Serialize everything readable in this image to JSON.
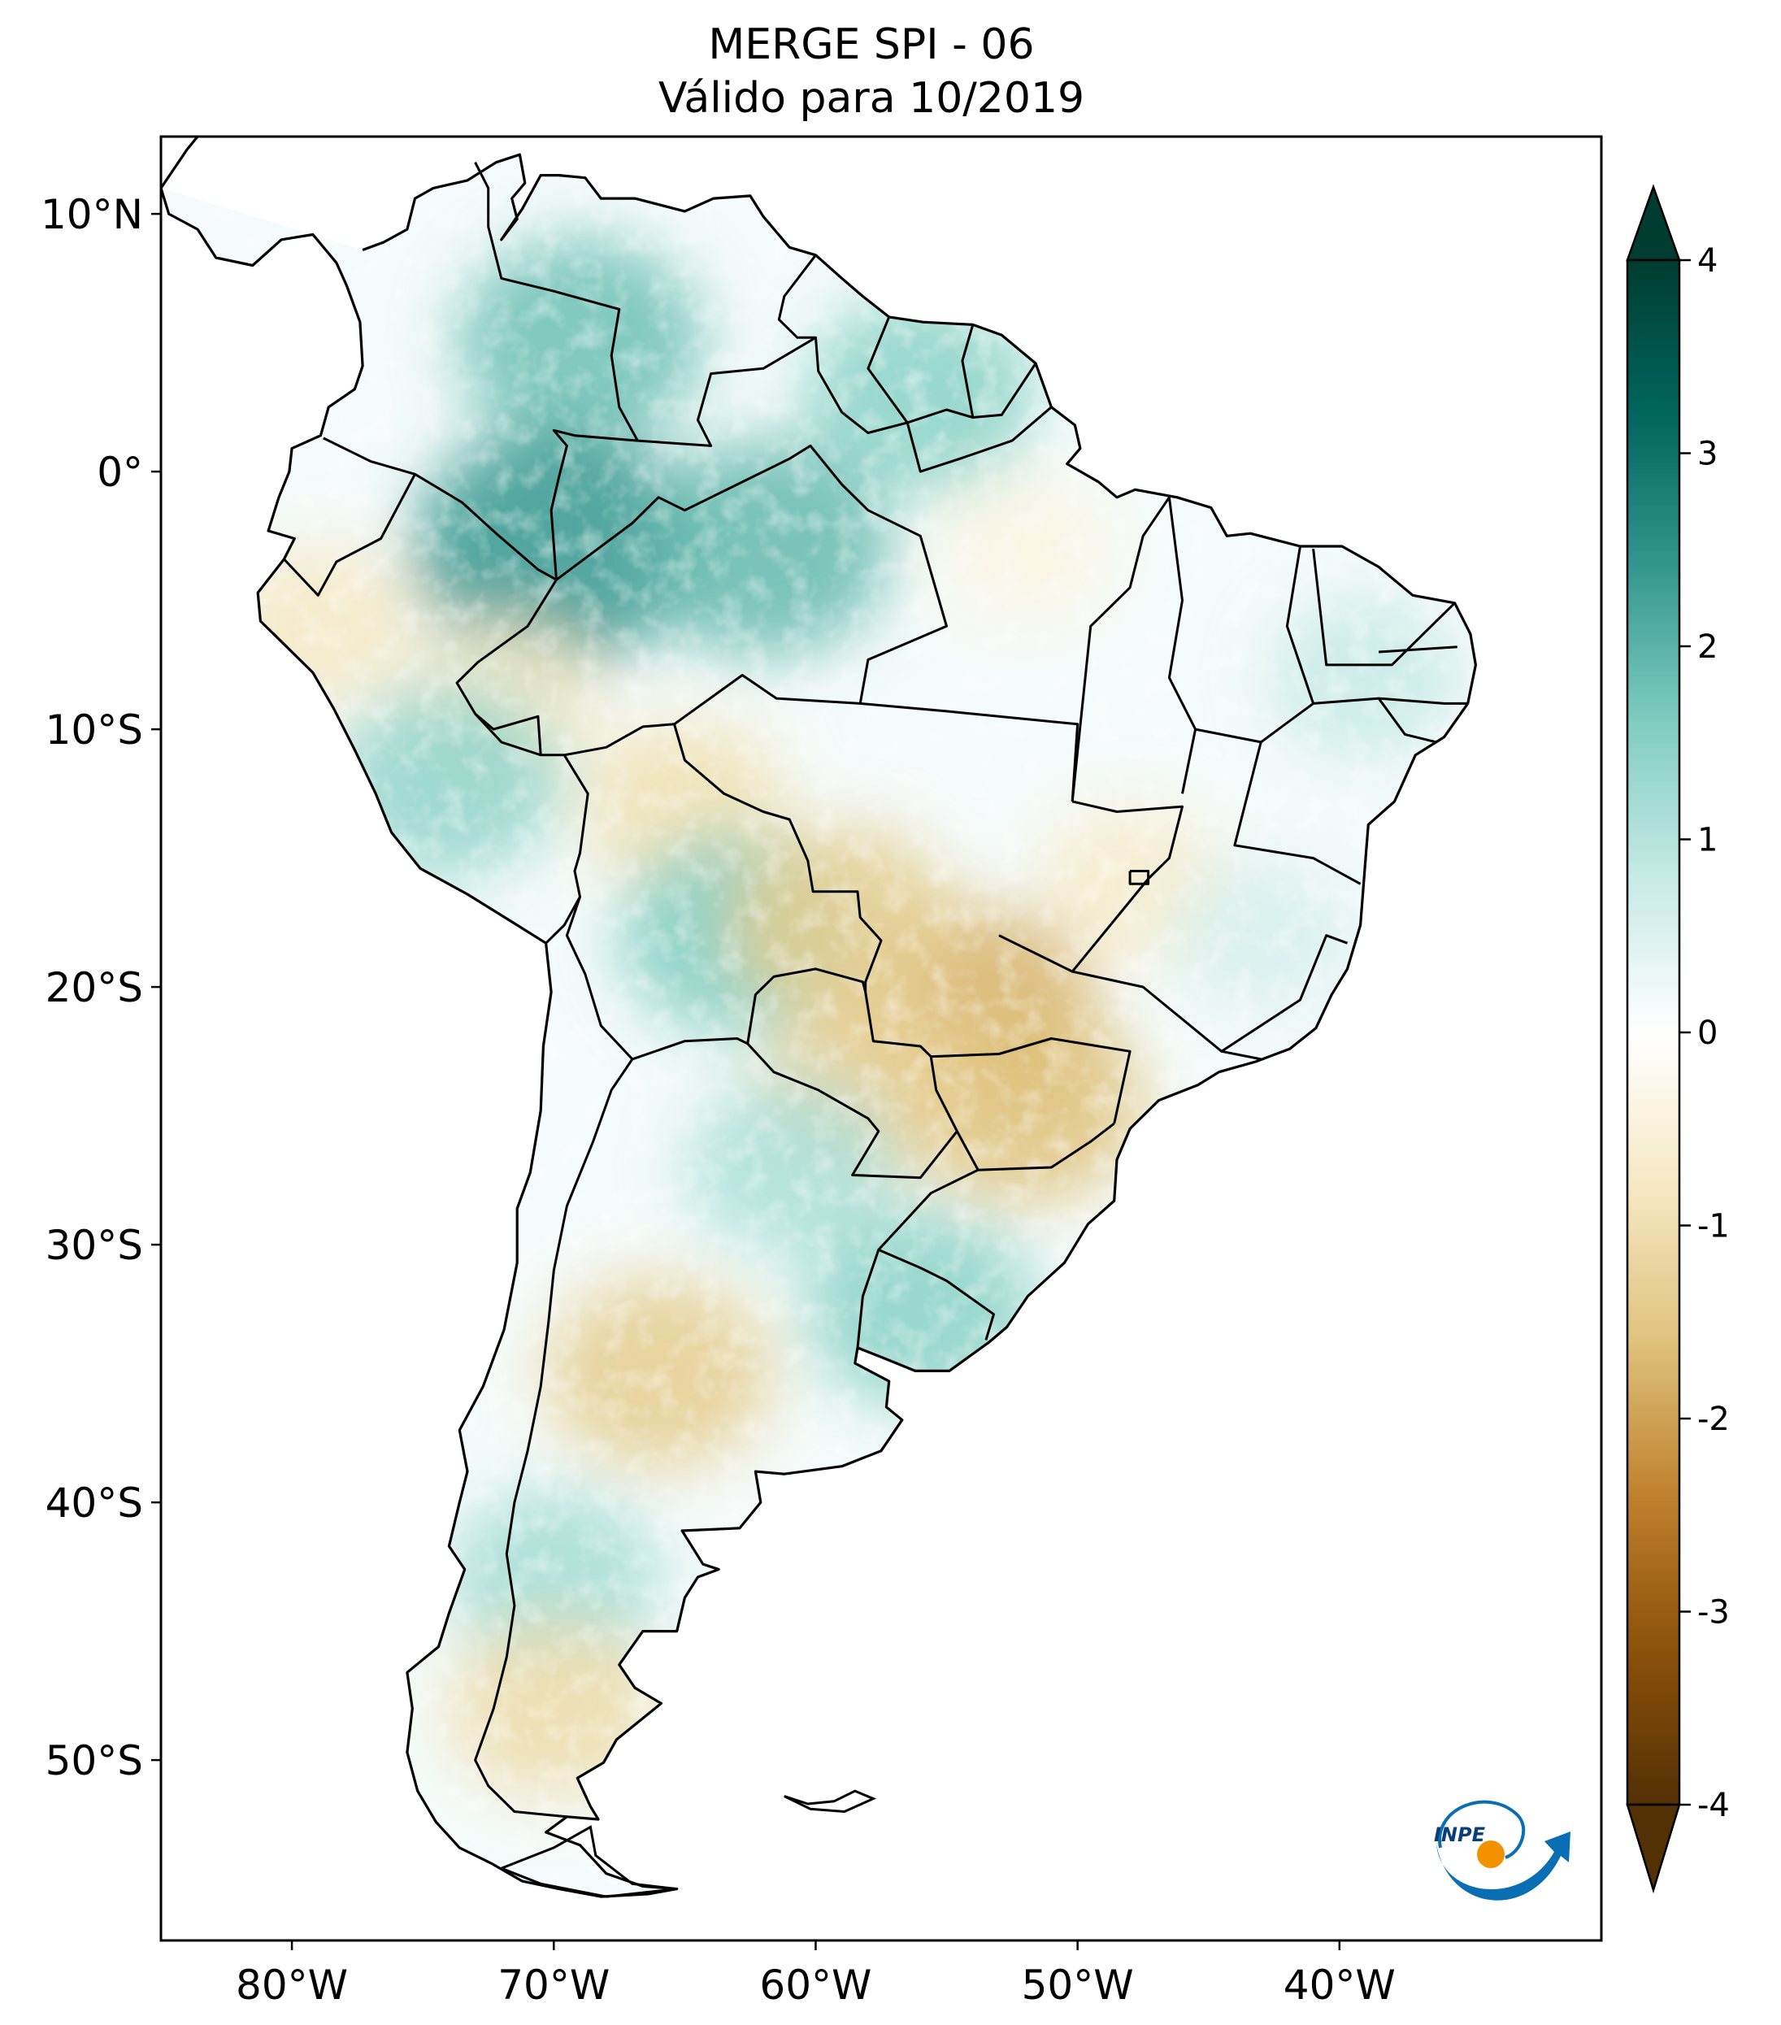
{
  "title": {
    "line1": "MERGE   SPI - 06",
    "line2": "Válido para 10/2019"
  },
  "map": {
    "region": "South America",
    "lon_range": [
      -85,
      -30
    ],
    "lat_range": [
      -57,
      13
    ],
    "lat_ticks": [
      {
        "value": 10,
        "label": "10°N"
      },
      {
        "value": 0,
        "label": "0°"
      },
      {
        "value": -10,
        "label": "10°S"
      },
      {
        "value": -20,
        "label": "20°S"
      },
      {
        "value": -30,
        "label": "30°S"
      },
      {
        "value": -40,
        "label": "40°S"
      },
      {
        "value": -50,
        "label": "50°S"
      }
    ],
    "lon_ticks": [
      {
        "value": -80,
        "label": "80°W"
      },
      {
        "value": -70,
        "label": "70°W"
      },
      {
        "value": -60,
        "label": "60°W"
      },
      {
        "value": -50,
        "label": "50°W"
      },
      {
        "value": -40,
        "label": "40°W"
      }
    ],
    "field_regions": [
      {
        "name": "colombia-venezuela-wet",
        "lon": -69,
        "lat": 5,
        "value": 1.8
      },
      {
        "name": "western-amazon-wet",
        "lon": -70,
        "lat": -3,
        "value": 2.4
      },
      {
        "name": "central-amazon-wet",
        "lon": -62,
        "lat": -3,
        "value": 1.9
      },
      {
        "name": "guianas-wet",
        "lon": -56,
        "lat": 3,
        "value": 1.5
      },
      {
        "name": "peru-coast-dry",
        "lon": -79,
        "lat": -6,
        "value": -0.8
      },
      {
        "name": "acre-dry",
        "lon": -72,
        "lat": -9,
        "value": -0.8
      },
      {
        "name": "peru-wet",
        "lon": -74,
        "lat": -12,
        "value": 1.4
      },
      {
        "name": "bolivia-north-dry",
        "lon": -65,
        "lat": -13,
        "value": -1.0
      },
      {
        "name": "bolivia-east-wet",
        "lon": -63,
        "lat": -18,
        "value": 1.6
      },
      {
        "name": "mato-grosso-sul-dry",
        "lon": -54,
        "lat": -21,
        "value": -1.8
      },
      {
        "name": "parana-dry",
        "lon": -52,
        "lat": -24.5,
        "value": -1.6
      },
      {
        "name": "paraguay-dry",
        "lon": -58,
        "lat": -24,
        "value": -1.3
      },
      {
        "name": "pantanal-dry",
        "lon": -59,
        "lat": -17.5,
        "value": -1.4
      },
      {
        "name": "uruguay-wet",
        "lon": -56,
        "lat": -32.5,
        "value": 1.5
      },
      {
        "name": "argentina-north-wet",
        "lon": -61,
        "lat": -27,
        "value": 1.1
      },
      {
        "name": "argentina-central-dry",
        "lon": -66,
        "lat": -35,
        "value": -1.4
      },
      {
        "name": "patagonia-wet",
        "lon": -70,
        "lat": -43,
        "value": 1.2
      },
      {
        "name": "patagonia-south-dry",
        "lon": -70,
        "lat": -48,
        "value": -1.1
      },
      {
        "name": "northeast-brazil-wet",
        "lon": -39,
        "lat": -8,
        "value": 0.8
      },
      {
        "name": "goias-dry",
        "lon": -48,
        "lat": -16,
        "value": -0.7
      },
      {
        "name": "minas-wet",
        "lon": -43,
        "lat": -18,
        "value": 0.6
      },
      {
        "name": "para-dry",
        "lon": -52,
        "lat": -3,
        "value": -0.4
      }
    ]
  },
  "colorbar": {
    "min": -4,
    "max": 4,
    "ticks": [
      {
        "value": 4,
        "label": "4"
      },
      {
        "value": 3,
        "label": "3"
      },
      {
        "value": 2,
        "label": "2"
      },
      {
        "value": 1,
        "label": "1"
      },
      {
        "value": 0,
        "label": "0"
      },
      {
        "value": -1,
        "label": "-1"
      },
      {
        "value": -2,
        "label": "-2"
      },
      {
        "value": -3,
        "label": "-3"
      },
      {
        "value": -4,
        "label": "-4"
      }
    ],
    "colors": [
      "#543005",
      "#8c510a",
      "#bf812d",
      "#dfc27d",
      "#f6e8c3",
      "#ffffff",
      "#c7eae5",
      "#80cdc1",
      "#35978f",
      "#01665e",
      "#003c30"
    ]
  },
  "logo": {
    "text": "INPE",
    "colors": {
      "blue": "#0a6eb4",
      "orange": "#f39200"
    }
  }
}
